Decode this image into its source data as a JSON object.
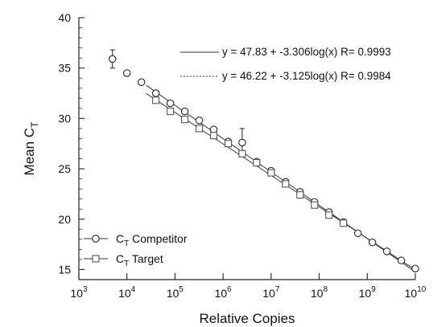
{
  "chart_data": {
    "type": "scatter",
    "title": "",
    "xlabel": "Relative Copies",
    "ylabel": {
      "base": "Mean C",
      "sub": "T"
    },
    "xscale": "log",
    "xlim": [
      1000,
      10000000000
    ],
    "ylim": [
      14,
      40
    ],
    "xticks": [
      {
        "value": 1000,
        "base": "10",
        "exp": "3"
      },
      {
        "value": 10000,
        "base": "10",
        "exp": "4"
      },
      {
        "value": 100000,
        "base": "10",
        "exp": "5"
      },
      {
        "value": 1000000,
        "base": "10",
        "exp": "6"
      },
      {
        "value": 10000000,
        "base": "10",
        "exp": "7"
      },
      {
        "value": 100000000,
        "base": "10",
        "exp": "8"
      },
      {
        "value": 1000000000,
        "base": "10",
        "exp": "9"
      },
      {
        "value": 10000000000,
        "base": "10",
        "exp": "10"
      }
    ],
    "yticks": [
      15,
      20,
      25,
      30,
      35,
      40
    ],
    "grid": false,
    "legend_position": "bottom-left",
    "equations": [
      "y = 47.83 + -3.306log(x) R= 0.9993",
      "y = 46.22 + -3.125log(x) R= 0.9984"
    ],
    "series": [
      {
        "name": {
          "base": "C",
          "sub": "T",
          "rest": " Competitor"
        },
        "marker": "circle",
        "fit": {
          "intercept": 47.83,
          "slope": -3.306
        },
        "points": [
          {
            "x": 5000,
            "y": 35.9,
            "err": 0.9
          },
          {
            "x": 10000,
            "y": 34.5
          },
          {
            "x": 20000,
            "y": 33.6
          },
          {
            "x": 40000,
            "y": 32.5
          },
          {
            "x": 80000,
            "y": 31.5
          },
          {
            "x": 160000,
            "y": 30.7
          },
          {
            "x": 320000,
            "y": 29.8
          },
          {
            "x": 640000,
            "y": 28.9
          },
          {
            "x": 1280000,
            "y": 27.7
          },
          {
            "x": 2500000,
            "y": 27.6,
            "err": 1.4
          },
          {
            "x": 5000000,
            "y": 25.7
          },
          {
            "x": 10000000,
            "y": 24.8
          },
          {
            "x": 20000000,
            "y": 23.7
          },
          {
            "x": 40000000,
            "y": 22.7
          },
          {
            "x": 80000000,
            "y": 21.7
          },
          {
            "x": 160000000,
            "y": 20.7
          },
          {
            "x": 320000000,
            "y": 19.7
          },
          {
            "x": 640000000,
            "y": 18.6
          },
          {
            "x": 1280000000,
            "y": 17.7
          },
          {
            "x": 2560000000,
            "y": 16.8
          },
          {
            "x": 5120000000,
            "y": 15.9
          },
          {
            "x": 10000000000,
            "y": 15.1
          }
        ]
      },
      {
        "name": {
          "base": "C",
          "sub": "T",
          "rest": " Target"
        },
        "marker": "square",
        "fit": {
          "intercept": 46.22,
          "slope": -3.125
        },
        "points": [
          {
            "x": 40000,
            "y": 31.8
          },
          {
            "x": 80000,
            "y": 30.7
          },
          {
            "x": 160000,
            "y": 29.9
          },
          {
            "x": 320000,
            "y": 29.0
          },
          {
            "x": 640000,
            "y": 28.3
          },
          {
            "x": 1280000,
            "y": 27.5
          },
          {
            "x": 2500000,
            "y": 26.5
          },
          {
            "x": 5000000,
            "y": 25.6
          },
          {
            "x": 10000000,
            "y": 24.6
          },
          {
            "x": 20000000,
            "y": 23.5
          },
          {
            "x": 40000000,
            "y": 22.4
          },
          {
            "x": 80000000,
            "y": 21.4
          },
          {
            "x": 160000000,
            "y": 20.4
          },
          {
            "x": 320000000,
            "y": 19.6
          }
        ]
      }
    ]
  }
}
